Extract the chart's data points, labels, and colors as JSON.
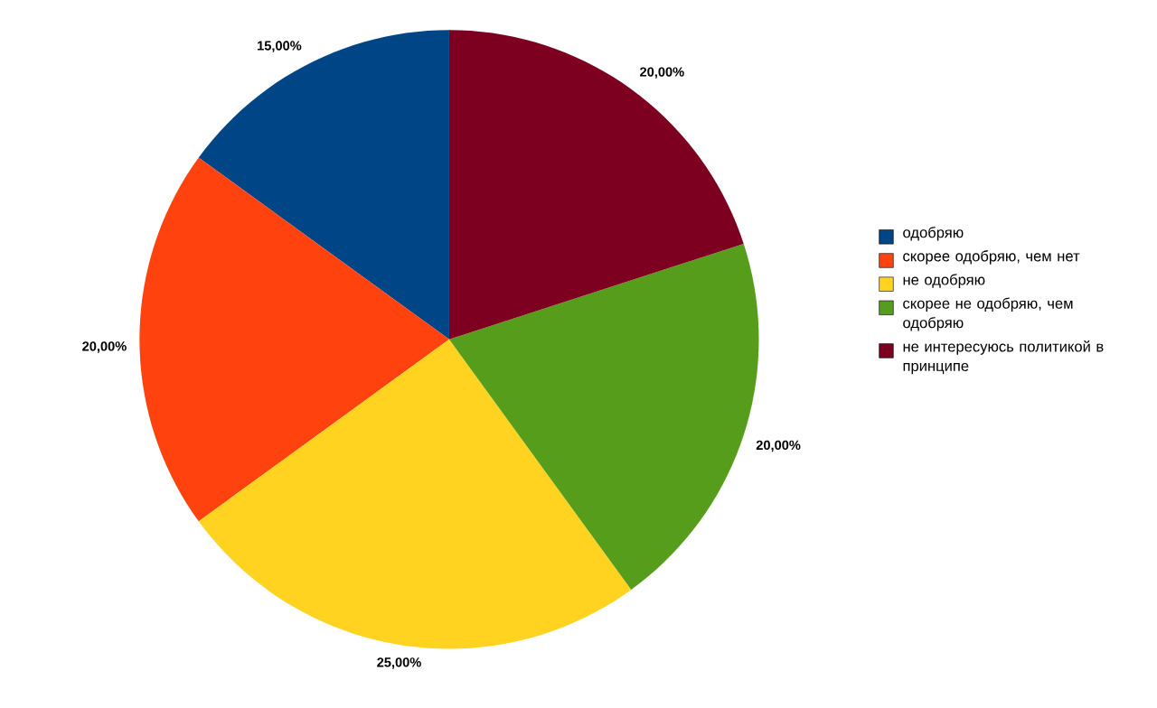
{
  "chart_data": {
    "type": "pie",
    "categories": [
      "одобряю",
      "скорее одобряю, чем нет",
      "не одобряю",
      "скорее не одобряю, чем одобряю",
      "не интересуюсь политикой в принципе"
    ],
    "values": [
      15,
      20,
      25,
      20,
      20
    ],
    "colors": [
      "#004586",
      "#ff420e",
      "#ffd320",
      "#579d1c",
      "#7e0021"
    ],
    "value_labels": [
      "15,00%",
      "20,00%",
      "25,00%",
      "20,00%",
      "20,00%"
    ],
    "legend": "right"
  }
}
